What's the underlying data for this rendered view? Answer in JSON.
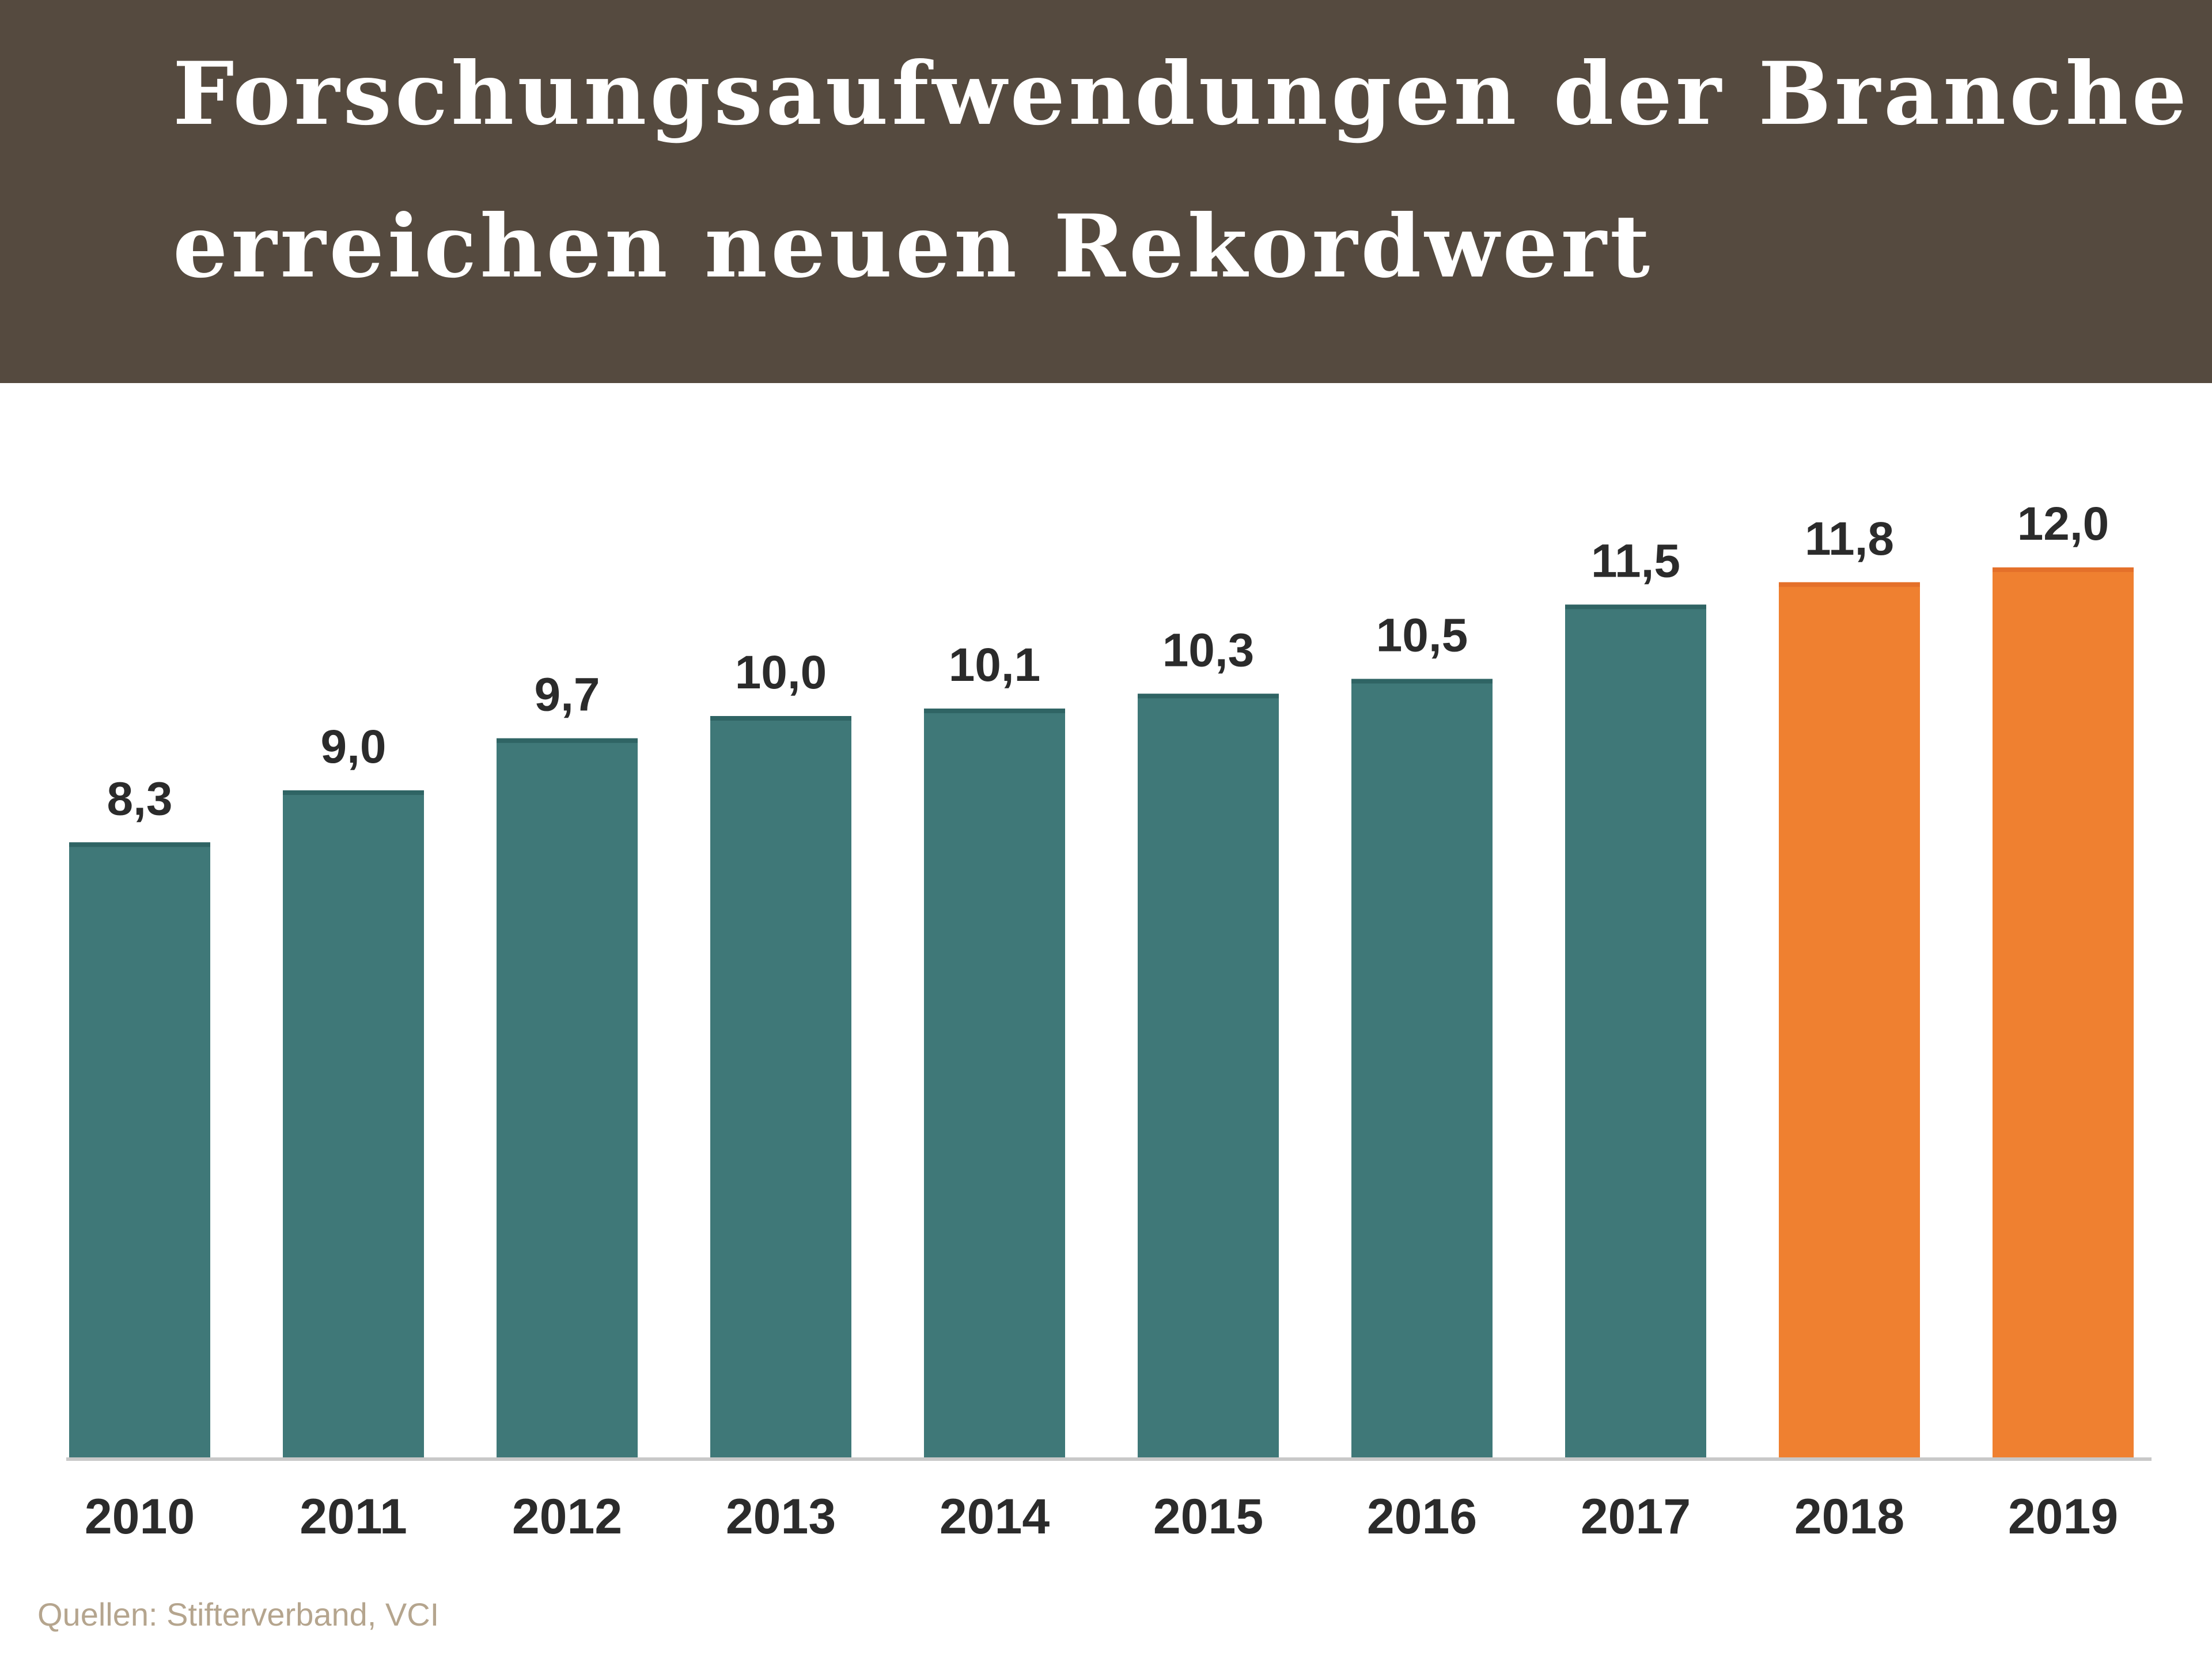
{
  "chart_data": {
    "type": "bar",
    "title": "Forschungsaufwendungen der Branche erreichen neuen Rekordwert",
    "title_lines": [
      "Forschungsaufwendungen der Branche",
      "erreichen neuen Rekordwert"
    ],
    "categories": [
      "2010",
      "2011",
      "2012",
      "2013",
      "2014",
      "2015",
      "2016",
      "2017",
      "2018",
      "2019"
    ],
    "values": [
      8.3,
      9.0,
      9.7,
      10.0,
      10.1,
      10.3,
      10.5,
      11.5,
      11.8,
      12.0
    ],
    "value_labels": [
      "8,3",
      "9,0",
      "9,7",
      "10,0",
      "10,1",
      "10,3",
      "10,5",
      "11,5",
      "11,8",
      "12,0"
    ],
    "bar_colors": [
      "#3f7878",
      "#3f7878",
      "#3f7878",
      "#3f7878",
      "#3f7878",
      "#3f7878",
      "#3f7878",
      "#3f7878",
      "#ef8030",
      "#ef8030"
    ],
    "xlabel": "",
    "ylabel": "",
    "ylim": [
      0,
      12
    ],
    "grid": false,
    "source": "Quellen: Stifterverband, VCI"
  },
  "colors": {
    "header_bg": "#554a3f",
    "actual": "#3f7878",
    "forecast": "#ef8030",
    "baseline": "#c8c8c8"
  }
}
